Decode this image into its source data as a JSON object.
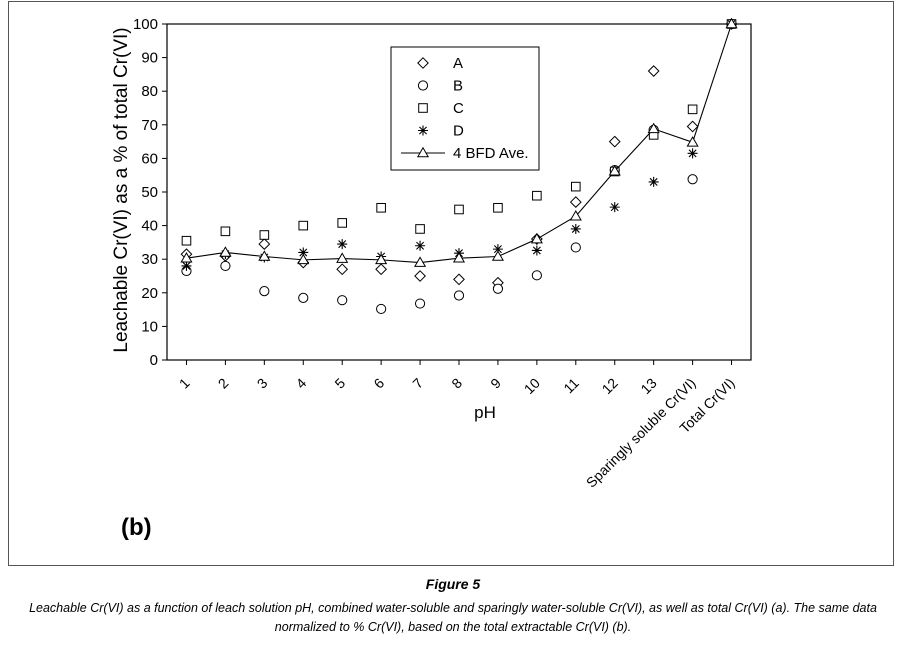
{
  "figure": {
    "title": "Figure 5",
    "caption_line1": "Leachable Cr(VI) as a function of leach solution pH, combined water-soluble and sparingly water-soluble Cr(VI), as well as total Cr(VI) (a).  The same data",
    "caption_line2": "normalized to % Cr(VI), based on the total extractable Cr(VI) (b).",
    "panel_label": "(b)"
  },
  "chart_data": {
    "type": "scatter",
    "title": "",
    "xlabel": "pH",
    "ylabel": "Leachable Cr(VI) as a % of total Cr(VI)",
    "ylim": [
      0,
      100
    ],
    "yticks": [
      0,
      10,
      20,
      30,
      40,
      50,
      60,
      70,
      80,
      90,
      100
    ],
    "categories": [
      "1",
      "2",
      "3",
      "4",
      "5",
      "6",
      "7",
      "8",
      "9",
      "10",
      "11",
      "12",
      "13",
      "Sparingly soluble Cr(VI)",
      "Total Cr(VI)"
    ],
    "grid": false,
    "legend_position": "top-center",
    "series": [
      {
        "name": "A",
        "marker": "diamond",
        "values": [
          31.5,
          31,
          34.5,
          29,
          27,
          27,
          25,
          24,
          23,
          36,
          47,
          65,
          86,
          69.5,
          100
        ]
      },
      {
        "name": "B",
        "marker": "circle",
        "values": [
          26.5,
          28,
          20.5,
          18.5,
          17.8,
          15.2,
          16.8,
          19.2,
          21.2,
          25.2,
          33.5,
          56.5,
          68.5,
          53.8,
          100
        ]
      },
      {
        "name": "C",
        "marker": "square",
        "values": [
          35.5,
          38.3,
          37.2,
          40,
          40.8,
          45.3,
          39,
          44.8,
          45.3,
          48.9,
          51.6,
          56.1,
          67,
          74.6,
          100
        ]
      },
      {
        "name": "D",
        "marker": "star",
        "values": [
          28,
          31.5,
          30.5,
          32,
          34.5,
          30.8,
          34,
          31.8,
          33,
          32.6,
          39,
          45.5,
          53,
          61.5,
          100
        ]
      },
      {
        "name": "4 BFD Ave.",
        "marker": "triangle-line",
        "values": [
          30.3,
          32,
          30.8,
          29.8,
          30.2,
          29.8,
          29,
          30.3,
          30.8,
          36,
          42.8,
          56.2,
          68.8,
          64.8,
          100
        ]
      }
    ]
  }
}
